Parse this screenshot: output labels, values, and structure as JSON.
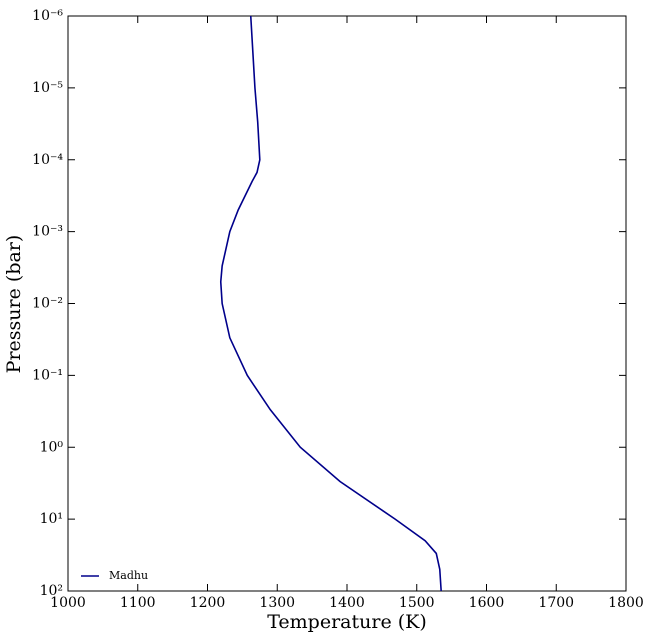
{
  "chart_data": {
    "type": "line",
    "xlabel": "Temperature (K)",
    "ylabel": "Pressure (bar)",
    "series": [
      {
        "name": "Madhu",
        "color": "#00008b",
        "x": [
          1262,
          1268,
          1272,
          1275,
          1271,
          1264,
          1244,
          1232,
          1221,
          1219,
          1221,
          1232,
          1257,
          1290,
          1333,
          1390,
          1469,
          1512,
          1528,
          1533,
          1535
        ],
        "values": [
          1e-06,
          1e-05,
          3e-05,
          0.0001,
          0.00015,
          0.0002,
          0.0005,
          0.001,
          0.003,
          0.005,
          0.01,
          0.03,
          0.1,
          0.3,
          1,
          3,
          10,
          20,
          30,
          50,
          100
        ]
      }
    ],
    "xlim": [
      1000,
      1800
    ],
    "xticks": [
      1000,
      1100,
      1200,
      1300,
      1400,
      1500,
      1600,
      1700,
      1800
    ],
    "ylim": [
      1e-06,
      100
    ],
    "yscale": "log",
    "yinverted": true,
    "yticks": [
      {
        "value": 1e-06,
        "label": "10⁻⁶"
      },
      {
        "value": 1e-05,
        "label": "10⁻⁵"
      },
      {
        "value": 0.0001,
        "label": "10⁻⁴"
      },
      {
        "value": 0.001,
        "label": "10⁻³"
      },
      {
        "value": 0.01,
        "label": "10⁻²"
      },
      {
        "value": 0.1,
        "label": "10⁻¹"
      },
      {
        "value": 1,
        "label": "10⁰"
      },
      {
        "value": 10,
        "label": "10¹"
      },
      {
        "value": 100,
        "label": "10²"
      }
    ],
    "legend": "lower left",
    "grid": false
  }
}
